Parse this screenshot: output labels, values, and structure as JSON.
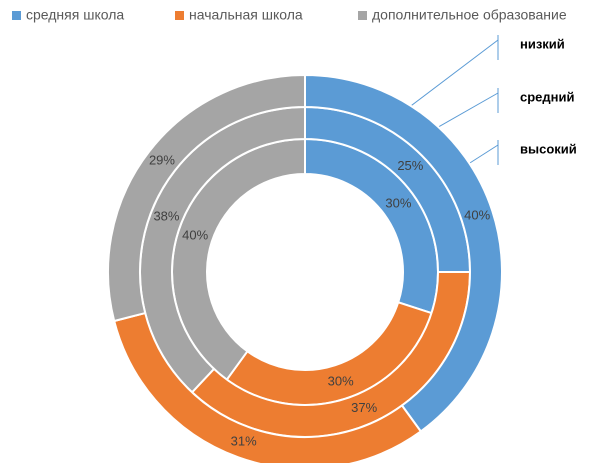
{
  "chart_data": {
    "type": "donut",
    "categories": [
      "средняя школа",
      "начальная школа",
      "дополнительное образование"
    ],
    "colors": [
      "#5b9bd5",
      "#ed7d31",
      "#a5a5a5"
    ],
    "series": [
      {
        "name": "низкий",
        "values": [
          30,
          30,
          40
        ],
        "value_labels": [
          "30%",
          "30%",
          "40%"
        ]
      },
      {
        "name": "средний",
        "values": [
          25,
          37,
          38
        ],
        "value_labels": [
          "25%",
          "37%",
          "38%"
        ]
      },
      {
        "name": "высокий",
        "values": [
          40,
          31,
          29
        ],
        "value_labels": [
          "40%",
          "31%",
          "29%"
        ]
      }
    ],
    "legend": "top"
  }
}
